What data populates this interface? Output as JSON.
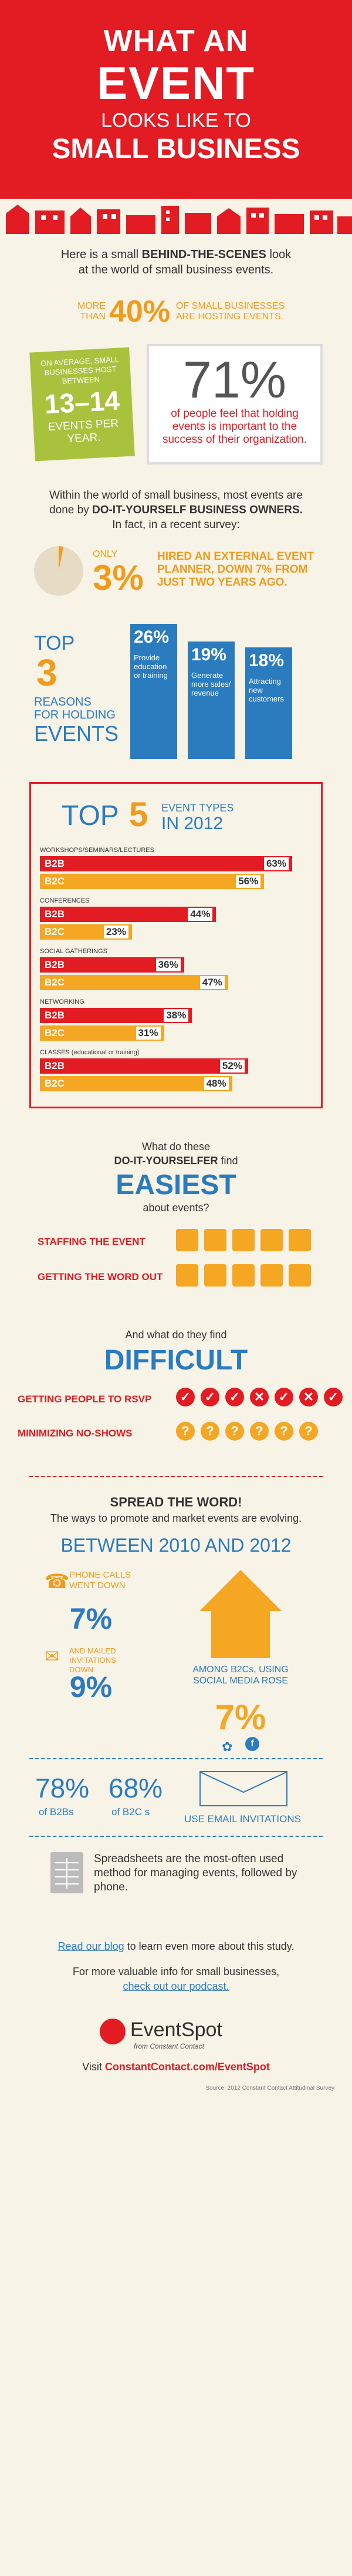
{
  "header": {
    "line1": "WHAT AN",
    "line2": "EVENT",
    "line3": "LOOKS LIKE TO",
    "line4": "SMALL BUSINESS"
  },
  "intro": {
    "text1": "Here is a small",
    "text2": "BEHIND-THE-SCENES",
    "text3": "look at the world of small business events."
  },
  "more_than": {
    "prefix": "MORE THAN",
    "pct": "40%",
    "text": "OF SMALL BUSINESSES ARE HOSTING EVENTS."
  },
  "avg": {
    "line1": "ON AVERAGE, SMALL BUSINESSES HOST BETWEEN",
    "number": "13–14",
    "line2": "EVENTS PER YEAR."
  },
  "big71": {
    "pct": "71%",
    "text": "of people feel that holding events is important to the success of their organization."
  },
  "diy": {
    "text1": "Within the world of small business, most events are done by",
    "text2": "DO-IT-YOURSELF BUSINESS OWNERS.",
    "text3": "In fact, in a recent survey:"
  },
  "planner": {
    "only": "ONLY",
    "pct": "3%",
    "text": "HIRED AN EXTERNAL EVENT PLANNER, DOWN 7% FROM JUST TWO YEARS AGO."
  },
  "reasons": {
    "top": "TOP",
    "num": "3",
    "label1": "REASONS",
    "label2": "FOR HOLDING",
    "label3": "EVENTS",
    "items": [
      {
        "pct": "26%",
        "text": "Provide education or training"
      },
      {
        "pct": "19%",
        "text": "Generate more sales/ revenue"
      },
      {
        "pct": "18%",
        "text": "Attracting new customers"
      }
    ]
  },
  "top5": {
    "top": "TOP",
    "num": "5",
    "sub1": "EVENT TYPES",
    "sub2": "IN 2012",
    "types": [
      {
        "name": "WORKSHOPS/SEMINARS/LECTURES",
        "b2b": "63%",
        "b2c": "56%",
        "b2b_val": 63,
        "b2c_val": 56
      },
      {
        "name": "CONFERENCES",
        "b2b": "44%",
        "b2c": "23%",
        "b2b_val": 44,
        "b2c_val": 23
      },
      {
        "name": "SOCIAL GATHERINGS",
        "b2b": "36%",
        "b2c": "47%",
        "b2b_val": 36,
        "b2c_val": 47
      },
      {
        "name": "NETWORKING",
        "b2b": "38%",
        "b2c": "31%",
        "b2b_val": 38,
        "b2c_val": 31
      },
      {
        "name": "CLASSES (educational or training)",
        "b2b": "52%",
        "b2c": "48%",
        "b2b_val": 52,
        "b2c_val": 48
      }
    ],
    "b2b_label": "B2B",
    "b2c_label": "B2C"
  },
  "easiest": {
    "q1": "What do these",
    "q2": "DO-IT-YOURSELFER",
    "q3": "find",
    "title": "EASIEST",
    "q4": "about events?",
    "rows": [
      {
        "label": "STAFFING THE EVENT"
      },
      {
        "label": "GETTING THE WORD OUT"
      }
    ]
  },
  "difficult": {
    "q1": "And what do they find",
    "title": "DIFFICULT",
    "rows": [
      {
        "label": "GETTING PEOPLE TO RSVP"
      },
      {
        "label": "MINIMIZING NO-SHOWS"
      }
    ]
  },
  "spread": {
    "title": "SPREAD THE WORD!",
    "sub": "The ways to promote and market events are evolving.",
    "between": "BETWEEN 2010 AND 2012",
    "phone_text": "PHONE CALLS WENT DOWN",
    "phone_pct": "7%",
    "mail_text": "AND MAILED INVITATIONS DOWN",
    "mail_pct": "9%",
    "social_text": "AMONG B2Cs, USING SOCIAL MEDIA ROSE",
    "social_pct": "7%"
  },
  "email": {
    "b2b_pct": "78%",
    "b2b_label": "of B2Bs",
    "b2c_pct": "68%",
    "b2c_label": "of B2C s",
    "text": "USE EMAIL INVITATIONS"
  },
  "spreadsheet": {
    "text": "Spreadsheets are the most-often used method for managing events, followed by phone."
  },
  "footer": {
    "blog1": "Read our blog",
    "blog2": "to learn even more about this study.",
    "info": "For more valuable info for small businesses,",
    "podcast": "check out our podcast.",
    "logo_name": "EventSpot",
    "logo_sub": "from Constant Contact",
    "visit": "Visit",
    "url": "ConstantContact.com/EventSpot",
    "source": "Source:   2012 Constant Contact Attitudinal Survey"
  },
  "colors": {
    "red": "#e31b23",
    "orange": "#f5a623",
    "blue": "#2b7bbf",
    "cream": "#f7f3e6"
  }
}
